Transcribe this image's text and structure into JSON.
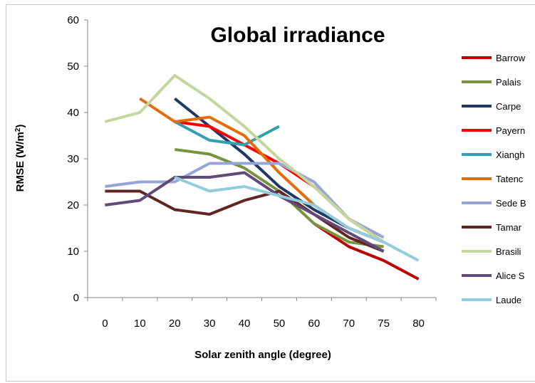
{
  "chart_data": {
    "type": "line",
    "title": "Global irradiance",
    "xlabel": "Solar zenith angle (degree)",
    "ylabel_prefix": "RMSE (W/m",
    "ylabel_sup": "2",
    "ylabel_suffix": ")",
    "categories": [
      "0",
      "10",
      "20",
      "30",
      "40",
      "50",
      "60",
      "70",
      "75",
      "80"
    ],
    "ylim": [
      0,
      60
    ],
    "yticks": [
      "0",
      "10",
      "20",
      "30",
      "40",
      "50",
      "60"
    ],
    "legend_position": "right",
    "grid": false,
    "series": [
      {
        "name": "Barrow",
        "color": "#c00000",
        "values": [
          null,
          null,
          null,
          null,
          null,
          null,
          16,
          11,
          8,
          4
        ]
      },
      {
        "name": "Palais",
        "color": "#77933c",
        "values": [
          null,
          null,
          32,
          31,
          28,
          23,
          16,
          12,
          11,
          null
        ]
      },
      {
        "name": "Carpe",
        "color": "#1f3864",
        "values": [
          null,
          null,
          43,
          37,
          31,
          24,
          19,
          15,
          12,
          null
        ]
      },
      {
        "name": "Payern",
        "color": "#ff0000",
        "values": [
          null,
          null,
          38,
          37,
          33,
          29,
          24,
          17,
          12,
          null
        ]
      },
      {
        "name": "Xiangh",
        "color": "#31a0b0",
        "values": [
          null,
          null,
          38,
          34,
          33,
          37,
          null,
          null,
          null,
          null
        ]
      },
      {
        "name": "Tatenc",
        "color": "#e46c0a",
        "values": [
          null,
          43,
          38,
          39,
          35,
          27,
          20,
          15,
          12,
          null
        ]
      },
      {
        "name": "Sede B",
        "color": "#95a5d9",
        "values": [
          24,
          25,
          25,
          29,
          29,
          29,
          25,
          17,
          13,
          null
        ]
      },
      {
        "name": "Tamar",
        "color": "#632523",
        "values": [
          23,
          23,
          19,
          18,
          21,
          23,
          18,
          13,
          10,
          null
        ]
      },
      {
        "name": "Brasili",
        "color": "#c3d69b",
        "values": [
          38,
          40,
          48,
          43,
          37,
          30,
          24,
          17,
          12,
          null
        ]
      },
      {
        "name": "Alice S",
        "color": "#604a7b",
        "values": [
          20,
          21,
          26,
          26,
          27,
          22,
          18,
          14,
          10,
          null
        ]
      },
      {
        "name": "Laude",
        "color": "#93cddd",
        "values": [
          null,
          null,
          26,
          23,
          24,
          22,
          20,
          15,
          12,
          8
        ]
      }
    ]
  }
}
